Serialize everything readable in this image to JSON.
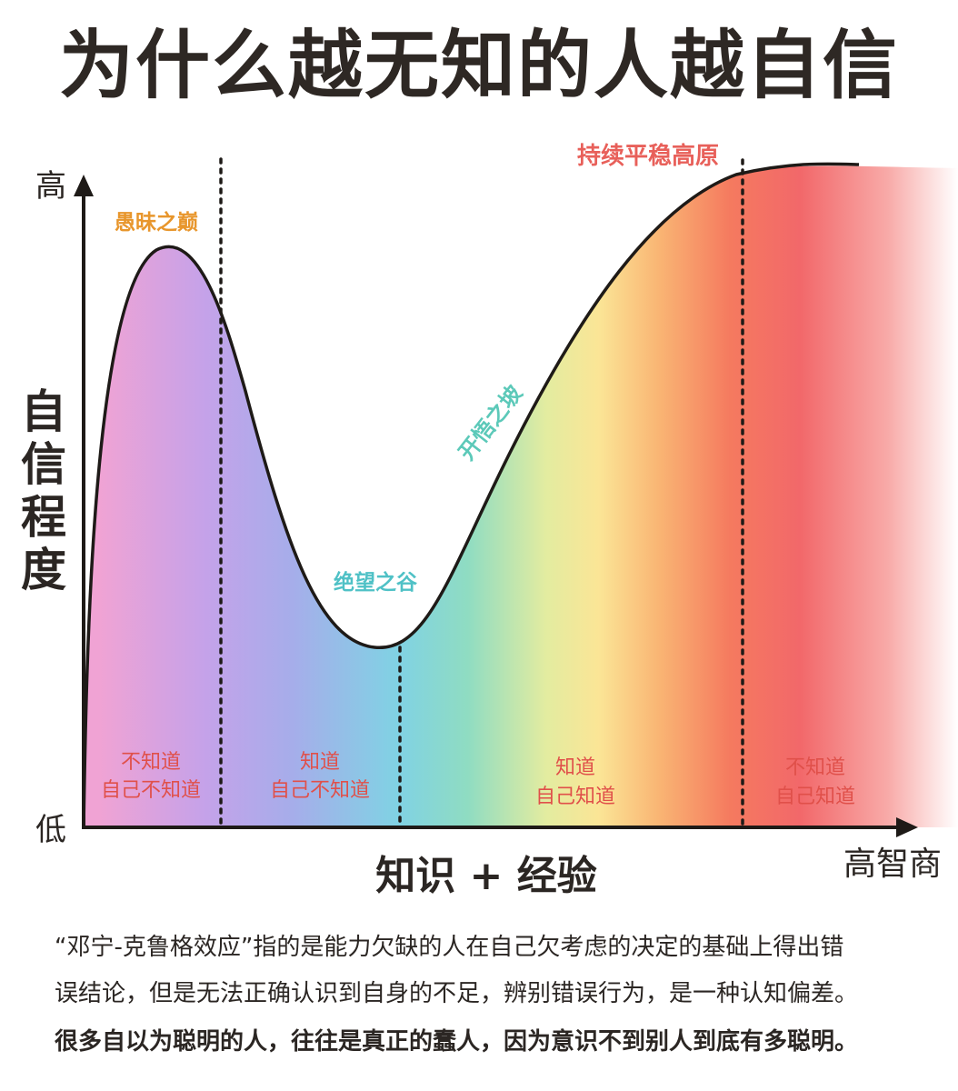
{
  "title": "为什么越无知的人越自信",
  "chart_data": {
    "type": "area",
    "y_axis": {
      "high": "高",
      "low": "低",
      "label": "自信程度"
    },
    "x_axis": {
      "label": "知识 + 经验",
      "end_label": "高智商"
    },
    "stages": [
      {
        "name": "愚昧之巅",
        "color": "#e8962c"
      },
      {
        "name": "绝望之谷",
        "color": "#4fc1c6"
      },
      {
        "name": "开悟之坡",
        "color": "#5cc9b9"
      },
      {
        "name": "持续平稳高原",
        "color": "#e8605a"
      }
    ],
    "zones": [
      {
        "line1": "不知道",
        "line2": "自己不知道"
      },
      {
        "line1": "知道",
        "line2": "自己不知道"
      },
      {
        "line1": "知道",
        "line2": "自己知道"
      },
      {
        "line1": "不知道",
        "line2": "自己知道"
      }
    ],
    "zone_text_color": "#e0504a"
  },
  "description": {
    "line1": "“邓宁-克鲁格效应”指的是能力欠缺的人在自己欠考虑的决定的基础上得出错",
    "line2": "误结论，但是无法正确认识到自身的不足，辨别错误行为，是一种认知偏差。",
    "line3": "很多自以为聪明的人，往往是真正的蠢人，因为意识不到别人到底有多聪明。"
  }
}
